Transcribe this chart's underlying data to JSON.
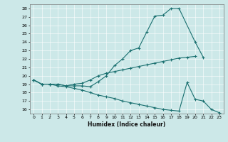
{
  "xlabel": "Humidex (Indice chaleur)",
  "bg_color": "#cce8e8",
  "grid_color": "#b0d0d0",
  "line_color": "#1a7070",
  "xlim": [
    -0.5,
    23.5
  ],
  "ylim": [
    15.5,
    28.5
  ],
  "xticks": [
    0,
    1,
    2,
    3,
    4,
    5,
    6,
    7,
    8,
    9,
    10,
    11,
    12,
    13,
    14,
    15,
    16,
    17,
    18,
    19,
    20,
    21,
    22,
    23
  ],
  "yticks": [
    16,
    17,
    18,
    19,
    20,
    21,
    22,
    23,
    24,
    25,
    26,
    27,
    28
  ],
  "line1_x": [
    0,
    1,
    2,
    3,
    4,
    5,
    6,
    7,
    8,
    9,
    10,
    11,
    12,
    13,
    14,
    15,
    16,
    17,
    18,
    20,
    21
  ],
  "line1_y": [
    19.5,
    19.0,
    19.0,
    19.0,
    18.8,
    18.8,
    18.8,
    18.7,
    19.3,
    20.0,
    21.2,
    22.0,
    23.0,
    23.3,
    25.2,
    27.1,
    27.2,
    28.0,
    28.0,
    24.0,
    22.2
  ],
  "line2_x": [
    0,
    1,
    2,
    3,
    4,
    5,
    6,
    7,
    8,
    9,
    10,
    11,
    12,
    13,
    14,
    15,
    16,
    17,
    18,
    19,
    20
  ],
  "line2_y": [
    19.5,
    19.0,
    19.0,
    19.0,
    18.8,
    19.0,
    19.1,
    19.5,
    20.0,
    20.3,
    20.5,
    20.7,
    20.9,
    21.1,
    21.3,
    21.5,
    21.7,
    21.9,
    22.1,
    22.2,
    22.3
  ],
  "line3_x": [
    0,
    1,
    2,
    3,
    4,
    5,
    6,
    7,
    8,
    9,
    10,
    11,
    12,
    13,
    14,
    15,
    16,
    17,
    18,
    19,
    20,
    21,
    22,
    23
  ],
  "line3_y": [
    19.5,
    19.0,
    19.0,
    18.8,
    18.7,
    18.5,
    18.3,
    18.0,
    17.7,
    17.5,
    17.3,
    17.0,
    16.8,
    16.6,
    16.4,
    16.2,
    16.0,
    15.9,
    15.8,
    19.2,
    17.2,
    17.0,
    16.0,
    15.6
  ]
}
